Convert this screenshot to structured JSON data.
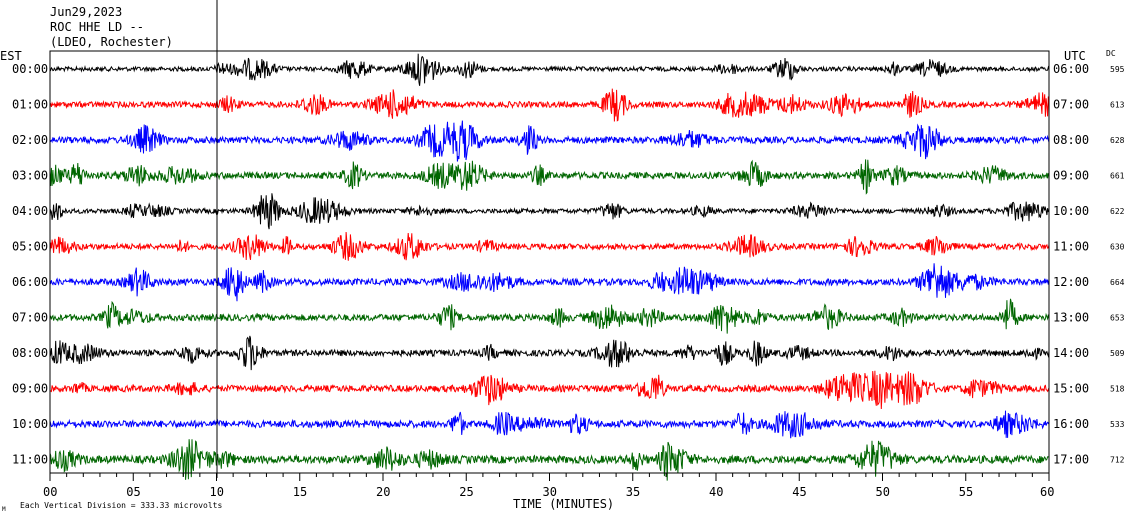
{
  "header": {
    "date": "Jun29,2023",
    "station": "ROC HHE LD --",
    "network": "(LDEO, Rochester)"
  },
  "axis": {
    "left_label": "EST",
    "right_label": "UTC",
    "dc_label": "DC",
    "x_label": "TIME (MINUTES)",
    "x_ticks": [
      "00",
      "05",
      "10",
      "15",
      "20",
      "25",
      "30",
      "35",
      "40",
      "45",
      "50",
      "55",
      "60"
    ],
    "footer": "Each Vertical Division =  333.33 microvolts",
    "corner_mark": "M"
  },
  "colors": {
    "black": "#000000",
    "red": "#ff0000",
    "blue": "#0000ff",
    "green": "#006600",
    "frame": "#000000"
  },
  "chart_data": {
    "type": "line",
    "title": "ROC HHE LD --",
    "xlabel": "TIME (MINUTES)",
    "xlim": [
      0,
      60
    ],
    "x_ticks": [
      0,
      5,
      10,
      15,
      20,
      25,
      30,
      35,
      40,
      45,
      50,
      55,
      60
    ],
    "grid": false,
    "series": [
      {
        "est": "00:00",
        "utc": "06:00",
        "dc": "595",
        "color": "black",
        "amplitude": 0.55
      },
      {
        "est": "01:00",
        "utc": "07:00",
        "dc": "613",
        "color": "red",
        "amplitude": 0.75
      },
      {
        "est": "02:00",
        "utc": "08:00",
        "dc": "628",
        "color": "blue",
        "amplitude": 0.85
      },
      {
        "est": "03:00",
        "utc": "09:00",
        "dc": "661",
        "color": "green",
        "amplitude": 0.85
      },
      {
        "est": "04:00",
        "utc": "10:00",
        "dc": "622",
        "color": "black",
        "amplitude": 0.6
      },
      {
        "est": "05:00",
        "utc": "11:00",
        "dc": "630",
        "color": "red",
        "amplitude": 0.75
      },
      {
        "est": "06:00",
        "utc": "12:00",
        "dc": "664",
        "color": "blue",
        "amplitude": 0.85
      },
      {
        "est": "07:00",
        "utc": "13:00",
        "dc": "653",
        "color": "green",
        "amplitude": 0.85
      },
      {
        "est": "08:00",
        "utc": "14:00",
        "dc": "509",
        "color": "black",
        "amplitude": 0.8
      },
      {
        "est": "09:00",
        "utc": "15:00",
        "dc": "518",
        "color": "red",
        "amplitude": 0.85
      },
      {
        "est": "10:00",
        "utc": "16:00",
        "dc": "533",
        "color": "blue",
        "amplitude": 0.9
      },
      {
        "est": "11:00",
        "utc": "17:00",
        "dc": "712",
        "color": "green",
        "amplitude": 1.0
      }
    ]
  }
}
